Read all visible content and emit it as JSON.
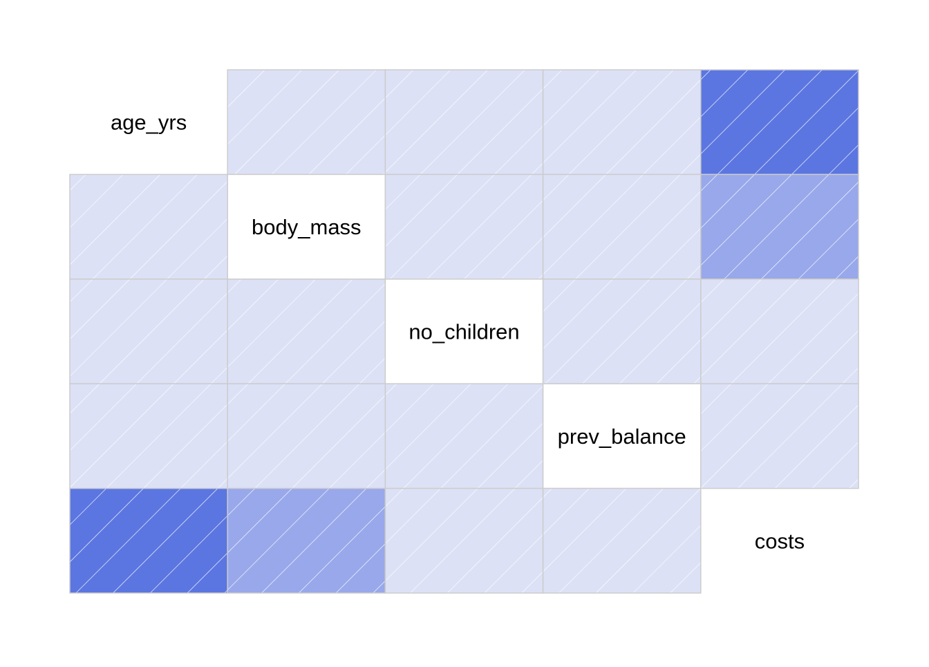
{
  "chart_data": {
    "type": "heatmap",
    "title": "",
    "variables": [
      "age_yrs",
      "body_mass",
      "no_children",
      "prev_balance",
      "costs"
    ],
    "matrix": [
      [
        1.0,
        0.11,
        0.04,
        -0.02,
        0.3
      ],
      [
        0.11,
        1.0,
        0.01,
        -0.01,
        0.2
      ],
      [
        0.04,
        0.01,
        1.0,
        0.01,
        0.07
      ],
      [
        -0.02,
        -0.01,
        0.01,
        1.0,
        0.0
      ],
      [
        0.3,
        0.2,
        0.07,
        0.0,
        1.0
      ]
    ],
    "diagonal_shows": "variable names",
    "fill_pattern": "diagonal hatch",
    "colors": {
      "low": "#dce1f6",
      "mid": "#98a8eb",
      "high": "#5b76e1",
      "grid_line": "#cccccc",
      "hatch_line": "#ffffff",
      "label_text": "#000000"
    }
  }
}
